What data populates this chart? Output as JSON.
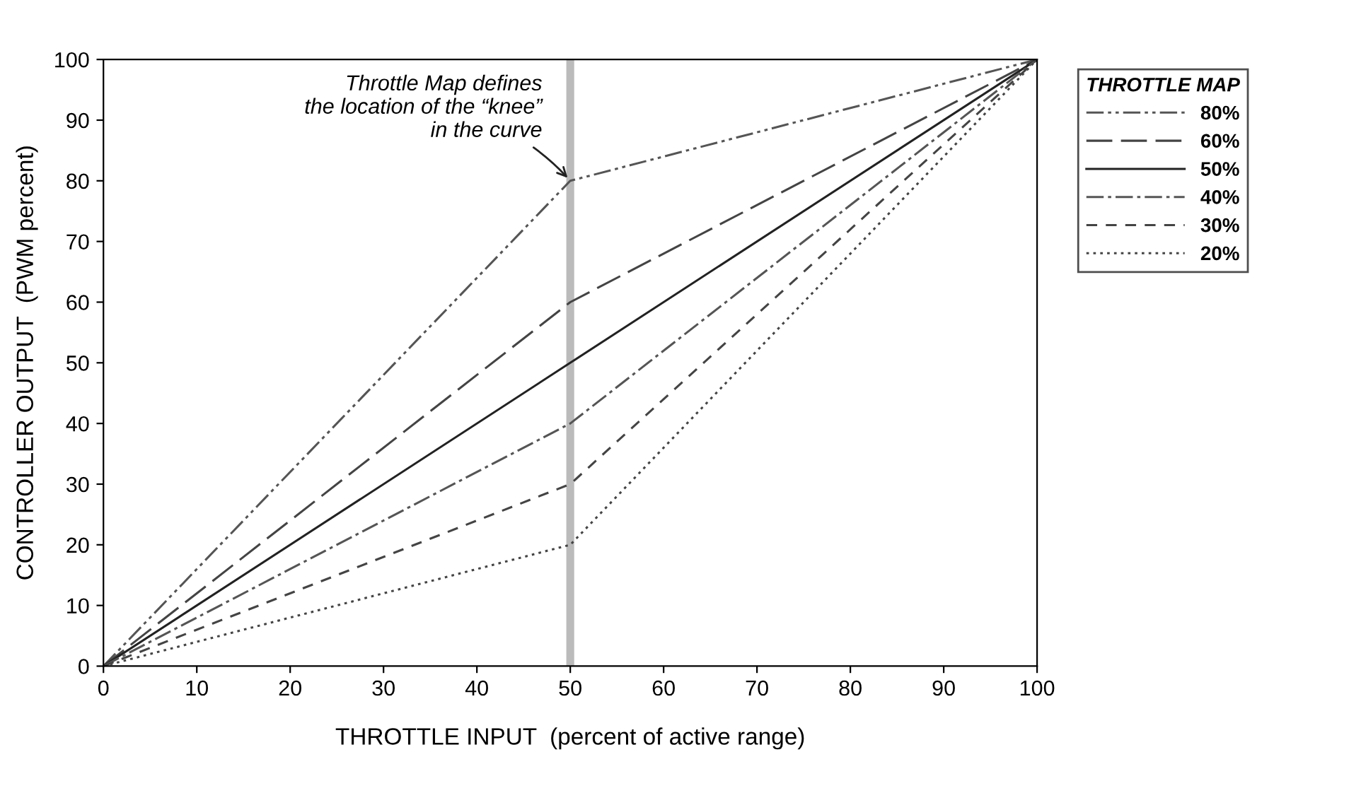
{
  "chart_data": {
    "type": "line",
    "xlabel": "THROTTLE INPUT  (percent of active range)",
    "ylabel": "CONTROLLER OUTPUT  (PWM percent)",
    "legend_title": "THROTTLE MAP",
    "legend": "top right",
    "grid": false,
    "marker": "none",
    "x": [
      0,
      50,
      100
    ],
    "xlim": [
      0,
      100
    ],
    "ylim": [
      0,
      100
    ],
    "xticks": [
      0,
      10,
      20,
      30,
      40,
      50,
      60,
      70,
      80,
      90,
      100
    ],
    "yticks": [
      0,
      10,
      20,
      30,
      40,
      50,
      60,
      70,
      80,
      90,
      100
    ],
    "series": [
      {
        "name": "80%",
        "color": "#555555",
        "line_style": "dashdotdot",
        "values": [
          0,
          80,
          100
        ]
      },
      {
        "name": "60%",
        "color": "#444444",
        "line_style": "longdash",
        "values": [
          0,
          60,
          100
        ]
      },
      {
        "name": "50%",
        "color": "#222222",
        "line_style": "solid",
        "values": [
          0,
          50,
          100
        ]
      },
      {
        "name": "40%",
        "color": "#555555",
        "line_style": "dashdot",
        "values": [
          0,
          40,
          100
        ]
      },
      {
        "name": "30%",
        "color": "#444444",
        "line_style": "dashed",
        "values": [
          0,
          30,
          100
        ]
      },
      {
        "name": "20%",
        "color": "#444444",
        "line_style": "dotted",
        "values": [
          0,
          20,
          100
        ]
      }
    ],
    "ref_lines": [
      {
        "axis": "x",
        "value": 50,
        "color": "#bbbbbb"
      }
    ],
    "annotations": [
      {
        "text": "Throttle Map defines\nthe location of the “knee”\nin the curve",
        "x": 50,
        "y": 80
      }
    ]
  }
}
